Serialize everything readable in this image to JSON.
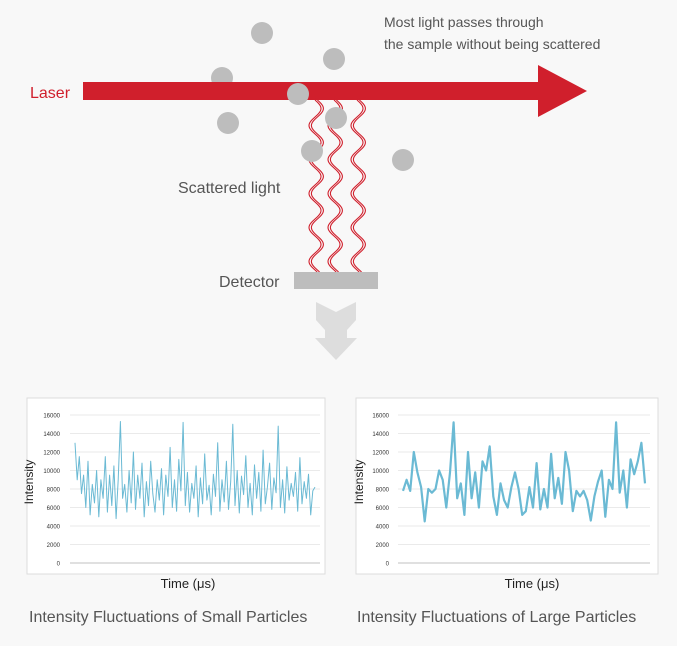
{
  "diagram": {
    "laser_label": "Laser",
    "passes_note_line1": "Most light passes through",
    "passes_note_line2": "the sample without being scattered",
    "scattered_label": "Scattered light",
    "detector_label": "Detector",
    "colors": {
      "laser": "#d01f2c",
      "particle": "#bdbdbd",
      "detector": "#bdbdbd",
      "arrow": "#dddddd",
      "text": "#555555"
    }
  },
  "charts": [
    {
      "caption": "Intensity Fluctuations of Small Particles",
      "chart_data": {
        "type": "line",
        "xlabel": "Time (μs)",
        "ylabel": "Intensity",
        "ylim": [
          0,
          16000
        ],
        "yticks": [
          "0",
          "2000",
          "4000",
          "6000",
          "8000",
          "10000",
          "12000",
          "14000",
          "16000"
        ],
        "grid": true,
        "color": "#6bbad4",
        "values": [
          13000,
          9000,
          11500,
          7500,
          9500,
          6000,
          11000,
          5200,
          8500,
          6500,
          10000,
          5000,
          9000,
          7000,
          11500,
          5500,
          9500,
          6200,
          10500,
          4800,
          9000,
          15300,
          7000,
          8500,
          5500,
          10000,
          6500,
          12000,
          5800,
          9500,
          7000,
          10800,
          5000,
          8800,
          6200,
          11000,
          7500,
          5500,
          9000,
          6800,
          10200,
          5200,
          9500,
          7200,
          12500,
          6000,
          9000,
          5600,
          11200,
          7800,
          15200,
          6200,
          9800,
          5500,
          8600,
          7000,
          10500,
          5000,
          9200,
          6400,
          11800,
          6800,
          8400,
          5200,
          9600,
          7200,
          13000,
          5600,
          9000,
          6600,
          11000,
          5800,
          8800,
          15000,
          6200,
          10000,
          5400,
          9400,
          7400,
          11600,
          6000,
          8600,
          5200,
          10600,
          7000,
          9800,
          5600,
          12200,
          6400,
          8200,
          10800,
          5800,
          9200,
          7600,
          14800,
          6000,
          9000,
          5400,
          10400,
          6800,
          8600,
          7200,
          9800,
          5600,
          11400,
          6400,
          8800,
          7000,
          9600,
          5200,
          7800,
          8200
        ]
      }
    },
    {
      "caption": "Intensity Fluctuations of Large Particles",
      "chart_data": {
        "type": "line",
        "xlabel": "Time (μs)",
        "ylabel": "Intensity",
        "ylim": [
          0,
          16000
        ],
        "yticks": [
          "0",
          "2000",
          "4000",
          "6000",
          "8000",
          "10000",
          "12000",
          "14000",
          "16000"
        ],
        "grid": true,
        "color": "#6bbad4",
        "values": [
          7800,
          9000,
          7800,
          12000,
          9800,
          8200,
          4500,
          8000,
          7600,
          8000,
          10000,
          9000,
          6000,
          9800,
          15200,
          7000,
          8600,
          5200,
          12000,
          7000,
          9800,
          6000,
          11000,
          10000,
          12600,
          7200,
          5200,
          8600,
          6800,
          6000,
          8200,
          9800,
          8000,
          5200,
          5600,
          8200,
          6000,
          10800,
          5800,
          8000,
          6000,
          11800,
          7000,
          9200,
          6400,
          12000,
          10000,
          5600,
          7800,
          7200,
          7800,
          6800,
          4600,
          7200,
          8800,
          10000,
          5000,
          9000,
          8000,
          15200,
          7600,
          10000,
          6000,
          11200,
          9600,
          11000,
          13000,
          8600
        ]
      }
    }
  ]
}
